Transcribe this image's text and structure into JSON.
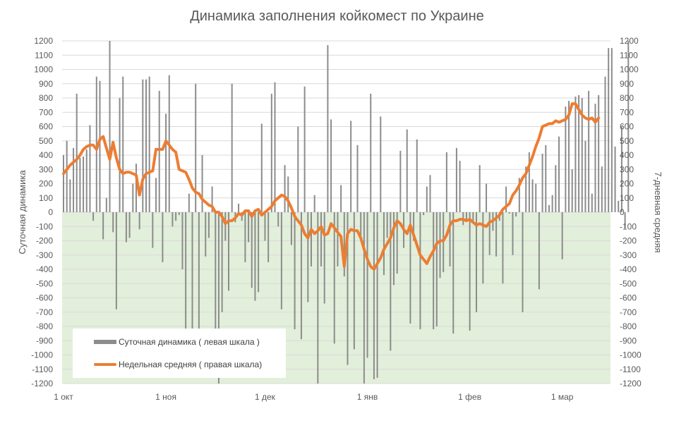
{
  "chart_data": {
    "type": "bar+line",
    "title": "Динамика заполнения койкомест по Украине",
    "ylabel_left": "Суточная динамика",
    "ylabel_right": "7-дневная средняя",
    "ylim_left": [
      -1200,
      1200
    ],
    "ylim_right": [
      -1200,
      1200
    ],
    "y_ticks": [
      1200,
      1100,
      1000,
      900,
      800,
      700,
      600,
      500,
      400,
      300,
      200,
      100,
      0,
      -100,
      -200,
      -300,
      -400,
      -500,
      -600,
      -700,
      -800,
      -900,
      -1000,
      -1100,
      -1200
    ],
    "x_tick_labels": [
      {
        "label": "1 окт",
        "day": 0
      },
      {
        "label": "1 ноя",
        "day": 31
      },
      {
        "label": "1 дек",
        "day": 61
      },
      {
        "label": "1 янв",
        "day": 92
      },
      {
        "label": "1 фев",
        "day": 123
      },
      {
        "label": "1 мар",
        "day": 151
      }
    ],
    "grid": true,
    "negative_region_color": "#e2efda",
    "legend_position": "bottom-left",
    "series": [
      {
        "name": "Суточная динамика ( левая шкала )",
        "type": "bar",
        "axis": "left",
        "color": "#8c8c8c",
        "values": [
          400,
          500,
          230,
          450,
          830,
          380,
          390,
          440,
          610,
          -60,
          950,
          920,
          -190,
          100,
          1200,
          -140,
          -680,
          800,
          950,
          -210,
          -180,
          200,
          340,
          -120,
          930,
          930,
          950,
          -250,
          240,
          850,
          -350,
          690,
          960,
          -100,
          -60,
          -20,
          -400,
          -1000,
          130,
          -960,
          900,
          -1000,
          400,
          -310,
          -180,
          180,
          -850,
          -1200,
          -700,
          -200,
          -550,
          900,
          -70,
          60,
          -60,
          -350,
          -210,
          -530,
          -620,
          -560,
          620,
          -200,
          -350,
          830,
          910,
          -100,
          -680,
          330,
          250,
          -230,
          -820,
          600,
          -890,
          880,
          -630,
          -380,
          120,
          -1200,
          -380,
          -640,
          1170,
          650,
          -920,
          -380,
          190,
          -450,
          -1070,
          640,
          -960,
          470,
          -200,
          -1200,
          -1020,
          830,
          -1170,
          -1160,
          670,
          -440,
          -180,
          -970,
          -510,
          -430,
          430,
          -250,
          580,
          -780,
          -200,
          510,
          -820,
          -20,
          180,
          260,
          -820,
          -800,
          -460,
          -420,
          420,
          -380,
          -850,
          450,
          360,
          -90,
          -60,
          -830,
          -70,
          -700,
          330,
          -500,
          200,
          -300,
          -130,
          -310,
          -60,
          -500,
          180,
          -10,
          -300,
          -30,
          240,
          -700,
          320,
          420,
          230,
          200,
          -540,
          410,
          470,
          50,
          120,
          330,
          530,
          -330,
          740,
          780,
          300,
          810,
          820,
          800,
          500,
          850,
          130,
          760,
          820,
          320,
          950,
          1150,
          1150,
          460,
          80,
          600,
          -110,
          1200
        ]
      },
      {
        "name": "Недельная средняя ( правая шкала)",
        "type": "line",
        "axis": "right",
        "color": "#ed7d31",
        "values": [
          270,
          300,
          330,
          350,
          370,
          400,
          440,
          460,
          470,
          470,
          440,
          510,
          530,
          450,
          370,
          490,
          380,
          300,
          270,
          280,
          280,
          270,
          260,
          120,
          230,
          270,
          280,
          290,
          440,
          440,
          440,
          500,
          470,
          440,
          420,
          300,
          290,
          280,
          230,
          170,
          140,
          130,
          90,
          70,
          50,
          40,
          0,
          0,
          -30,
          -80,
          -60,
          -60,
          -40,
          -10,
          -20,
          10,
          10,
          -30,
          10,
          20,
          -20,
          0,
          20,
          40,
          80,
          100,
          120,
          110,
          80,
          30,
          -30,
          -60,
          -90,
          -150,
          -180,
          -120,
          -150,
          -130,
          -100,
          -160,
          -150,
          -80,
          -110,
          -140,
          -170,
          -380,
          -150,
          -120,
          -130,
          -130,
          -180,
          -260,
          -330,
          -380,
          -400,
          -360,
          -320,
          -260,
          -220,
          -180,
          -110,
          -60,
          -80,
          -120,
          -150,
          -90,
          -160,
          -230,
          -300,
          -330,
          -360,
          -310,
          -270,
          -220,
          -200,
          -200,
          -160,
          -90,
          -60,
          -60,
          -50,
          -50,
          -60,
          -50,
          -70,
          -90,
          -80,
          -90,
          -100,
          -70,
          -60,
          -40,
          -20,
          20,
          40,
          60,
          120,
          150,
          190,
          240,
          270,
          330,
          390,
          460,
          520,
          600,
          610,
          620,
          620,
          640,
          630,
          640,
          650,
          680,
          760,
          760,
          720,
          680,
          660,
          650,
          660,
          630,
          660
        ]
      }
    ]
  }
}
